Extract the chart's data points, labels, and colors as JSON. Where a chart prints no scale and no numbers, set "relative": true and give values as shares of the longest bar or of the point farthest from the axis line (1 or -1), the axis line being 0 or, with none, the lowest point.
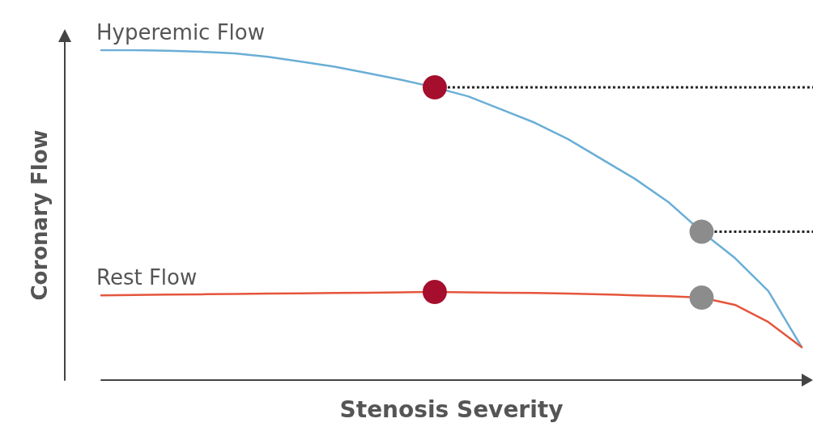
{
  "chart_data": {
    "type": "line",
    "relative": true,
    "xlabel": "Stenosis Severity",
    "ylabel": "Coronary Flow",
    "legend": false,
    "grid": false,
    "marker": "none",
    "ref_lines": [
      {
        "axis": "y",
        "value": 0.887,
        "color": "#222222",
        "line_style": "dotted"
      },
      {
        "axis": "y",
        "value": 0.45,
        "color": "#222222",
        "line_style": "dotted"
      }
    ],
    "categories": [
      null,
      null,
      null,
      null,
      null,
      null,
      null,
      null,
      null,
      null,
      null,
      null,
      null,
      null,
      null,
      null,
      null,
      null,
      null,
      null,
      null,
      null
    ],
    "series": [
      {
        "name": "Hyperemic Flow",
        "color": "#6aaed6",
        "values": [
          1.0,
          1.0,
          0.998,
          0.995,
          0.99,
          0.98,
          0.965,
          0.95,
          0.93,
          0.91,
          0.887,
          0.86,
          0.82,
          0.78,
          0.73,
          0.67,
          0.61,
          0.54,
          0.45,
          0.37,
          0.27,
          0.1
        ],
        "colors": [
          null,
          null,
          null,
          null,
          null,
          null,
          null,
          null,
          null,
          null,
          "#a50e2d",
          null,
          null,
          null,
          null,
          null,
          null,
          null,
          "#8c8c8c",
          null,
          null,
          null
        ]
      },
      {
        "name": "Rest Flow",
        "color": "#e5553d",
        "values": [
          0.257,
          0.258,
          0.259,
          0.26,
          0.261,
          0.262,
          0.263,
          0.264,
          0.265,
          0.266,
          0.267,
          0.266,
          0.265,
          0.264,
          0.262,
          0.26,
          0.257,
          0.254,
          0.25,
          0.228,
          0.176,
          0.1
        ],
        "colors": [
          null,
          null,
          null,
          null,
          null,
          null,
          null,
          null,
          null,
          null,
          "#a50e2d",
          null,
          null,
          null,
          null,
          null,
          null,
          null,
          "#8c8c8c",
          null,
          null,
          null
        ]
      }
    ]
  }
}
